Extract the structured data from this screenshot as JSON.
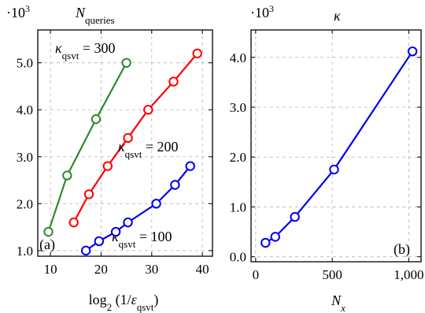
{
  "chart_data": [
    {
      "type": "line",
      "panel_label": "(a)",
      "title": "N_queries",
      "scale_note": "·10^3",
      "xlabel": "log2 (1/ε_qsvt)",
      "xlim": [
        7.5,
        42
      ],
      "ylim": [
        0.88,
        5.7
      ],
      "x_ticks": [
        10,
        20,
        30,
        40
      ],
      "y_ticks": [
        1.0,
        2.0,
        3.0,
        4.0,
        5.0
      ],
      "y_tick_labels": [
        "1.0",
        "2.0",
        "3.0",
        "4.0",
        "5.0"
      ],
      "grid": true,
      "series": [
        {
          "name": "κ_qsvt = 300",
          "color": "#2e8b2e",
          "x": [
            9.6,
            13.3,
            19.0,
            25.0
          ],
          "y": [
            1.4,
            2.6,
            3.8,
            5.0
          ]
        },
        {
          "name": "κ_qsvt = 200",
          "color": "#ff0000",
          "x": [
            14.6,
            17.6,
            21.3,
            25.3,
            29.3,
            34.3,
            39.0
          ],
          "y": [
            1.6,
            2.2,
            2.8,
            3.4,
            4.0,
            4.6,
            5.2
          ]
        },
        {
          "name": "κ_qsvt = 100",
          "color": "#0000ee",
          "x": [
            17.0,
            19.6,
            22.9,
            25.3,
            30.9,
            34.6,
            37.6
          ],
          "y": [
            1.0,
            1.2,
            1.4,
            1.6,
            2.0,
            2.4,
            2.8
          ]
        }
      ]
    },
    {
      "type": "line",
      "panel_label": "(b)",
      "title": "κ",
      "scale_note": "·10^3",
      "xlabel": "N_x",
      "xlim": [
        -30,
        1080
      ],
      "ylim": [
        -0.1,
        4.55
      ],
      "x_ticks": [
        0,
        500,
        1000
      ],
      "x_tick_labels": [
        "0",
        "500",
        "1,000"
      ],
      "y_ticks": [
        0,
        1,
        2,
        3,
        4
      ],
      "y_tick_labels": [
        "0.0",
        "1.0",
        "2.0",
        "3.0",
        "4.0"
      ],
      "grid": true,
      "series": [
        {
          "color": "#0000ee",
          "x": [
            64,
            128,
            256,
            512,
            1024
          ],
          "y": [
            0.28,
            0.4,
            0.8,
            1.75,
            4.12
          ]
        }
      ]
    }
  ]
}
